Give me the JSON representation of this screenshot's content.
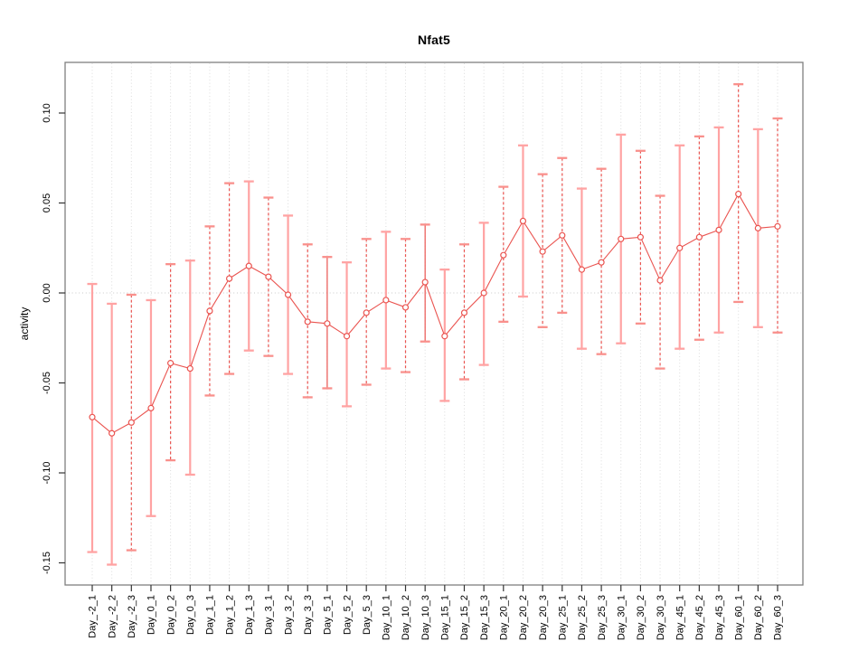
{
  "chart_data": {
    "type": "line",
    "title": "Nfat5",
    "xlabel": "",
    "ylabel": "activity",
    "ylim": [
      -0.163,
      0.128
    ],
    "yticks": [
      -0.15,
      -0.1,
      -0.05,
      0.0,
      0.05,
      0.1
    ],
    "ytick_labels": [
      "-0.15",
      "-0.10",
      "-0.05",
      "0.00",
      "0.05",
      "0.10"
    ],
    "grid": "dotted vertical gridline at every category, dotted horizontal line at zero",
    "legend_position": "none",
    "categories": [
      "Day_-2_1",
      "Day_-2_2",
      "Day_-2_3",
      "Day_0_1",
      "Day_0_2",
      "Day_0_3",
      "Day_1_1",
      "Day_1_2",
      "Day_1_3",
      "Day_3_1",
      "Day_3_2",
      "Day_3_3",
      "Day_5_1",
      "Day_5_2",
      "Day_5_3",
      "Day_10_1",
      "Day_10_2",
      "Day_10_3",
      "Day_15_1",
      "Day_15_2",
      "Day_15_3",
      "Day_20_1",
      "Day_20_2",
      "Day_20_3",
      "Day_25_1",
      "Day_25_2",
      "Day_25_3",
      "Day_30_1",
      "Day_30_2",
      "Day_30_3",
      "Day_45_1",
      "Day_45_2",
      "Day_45_3",
      "Day_60_1",
      "Day_60_2",
      "Day_60_3"
    ],
    "series": [
      {
        "name": "activity",
        "marker": "open-circle",
        "values": [
          -0.069,
          -0.078,
          -0.072,
          -0.064,
          -0.039,
          -0.042,
          -0.01,
          0.008,
          0.015,
          0.009,
          -0.001,
          -0.016,
          -0.017,
          -0.024,
          -0.011,
          -0.004,
          -0.008,
          0.006,
          -0.024,
          -0.011,
          0.0,
          0.021,
          0.04,
          0.023,
          0.032,
          0.013,
          0.017,
          0.03,
          0.031,
          0.007,
          0.025,
          0.031,
          0.035,
          0.055,
          0.036,
          0.037
        ],
        "ci_high": [
          0.005,
          -0.006,
          -0.001,
          -0.004,
          0.016,
          0.018,
          0.037,
          0.061,
          0.062,
          0.053,
          0.043,
          0.027,
          0.02,
          0.017,
          0.03,
          0.034,
          0.03,
          0.038,
          0.013,
          0.027,
          0.039,
          0.059,
          0.082,
          0.066,
          0.075,
          0.058,
          0.069,
          0.088,
          0.079,
          0.054,
          0.082,
          0.087,
          0.092,
          0.116,
          0.091,
          0.097
        ],
        "ci_low": [
          -0.144,
          -0.151,
          -0.143,
          -0.124,
          -0.093,
          -0.101,
          -0.057,
          -0.045,
          -0.032,
          -0.035,
          -0.045,
          -0.058,
          -0.053,
          -0.063,
          -0.051,
          -0.042,
          -0.044,
          -0.027,
          -0.06,
          -0.048,
          -0.04,
          -0.016,
          -0.002,
          -0.019,
          -0.011,
          -0.031,
          -0.034,
          -0.028,
          -0.017,
          -0.042,
          -0.031,
          -0.026,
          -0.022,
          -0.005,
          -0.019,
          -0.022
        ],
        "bar_styles": [
          "pink",
          "pink",
          "dashed",
          "pink",
          "dashed",
          "pink",
          "dashed",
          "dashed",
          "pink",
          "dashed",
          "pink",
          "dashed",
          "red",
          "pink",
          "dashed",
          "pink",
          "dashed",
          "red",
          "pink",
          "dashed",
          "pink",
          "dashed",
          "pink",
          "dashed",
          "dashed",
          "pink",
          "dashed",
          "pink",
          "dashed",
          "dashed",
          "pink",
          "dashed",
          "pink",
          "dashed",
          "pink",
          "dashed"
        ]
      }
    ],
    "colors": {
      "point": "#ea5450",
      "line": "#ea5450",
      "error_bar_red": "#ea5450",
      "error_bar_pink": "#ffa3a3",
      "error_cap": "#f9908c",
      "grid": "#dcdcdc",
      "zero_line": "#c9c9c9",
      "frame": "#7f7f7f",
      "axis_text": "#000000"
    }
  }
}
